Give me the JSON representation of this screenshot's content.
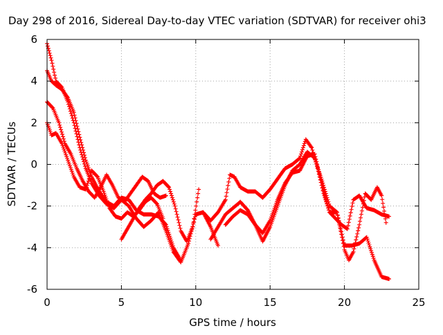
{
  "chart_data": {
    "type": "scatter",
    "title": "Day 298 of 2016, Sidereal Day-to-day VTEC variation (SDTVAR) for receiver ohi3",
    "xlabel": "GPS time / hours",
    "ylabel": "SDTVAR / TECUs",
    "xlim": [
      0,
      25
    ],
    "ylim": [
      -6,
      6
    ],
    "x_ticks": [
      "0",
      "5",
      "10",
      "15",
      "20",
      "25"
    ],
    "y_ticks": [
      "-6",
      "-4",
      "-2",
      "0",
      "2",
      "4",
      "6"
    ],
    "grid": true,
    "marker": "+",
    "color": "#ff0000",
    "series": [
      {
        "x": [
          0.0,
          0.3,
          0.6,
          1.0,
          1.4,
          1.8,
          2.2,
          2.6,
          3.0,
          3.5,
          4.0,
          4.5,
          5.0,
          5.5,
          6.0,
          6.5,
          7.0,
          7.5,
          8.0,
          8.5,
          9.0,
          9.5,
          10.0,
          10.5,
          11.0,
          11.5
        ],
        "y": [
          5.8,
          5.0,
          4.0,
          3.7,
          3.0,
          2.0,
          0.8,
          -0.2,
          -0.9,
          -1.5,
          -1.9,
          -2.1,
          -1.7,
          -2.0,
          -2.6,
          -3.0,
          -2.7,
          -2.3,
          -3.2,
          -4.2,
          -4.7,
          -3.8,
          -2.4,
          -2.3,
          -3.0,
          -3.9
        ]
      },
      {
        "x": [
          0.0,
          0.3,
          0.6,
          1.0,
          1.4,
          1.8,
          2.2,
          2.6,
          3.0,
          3.5,
          4.0,
          4.5,
          5.0,
          5.5,
          6.0,
          6.5,
          7.0,
          7.5,
          8.0,
          8.5,
          8.9
        ],
        "y": [
          4.5,
          4.0,
          3.8,
          3.6,
          3.2,
          2.5,
          1.3,
          0.2,
          -0.6,
          -1.3,
          -1.8,
          -2.0,
          -1.6,
          -1.7,
          -2.2,
          -2.4,
          -2.4,
          -2.5,
          -2.9,
          -4.0,
          -4.5
        ]
      },
      {
        "x": [
          0.0,
          0.4,
          0.8,
          1.2,
          1.6,
          2.0,
          2.4,
          2.8,
          3.2,
          3.6,
          4.0,
          4.4,
          4.8,
          5.2,
          5.6,
          6.0,
          6.4,
          6.8,
          7.2,
          7.6,
          8.0
        ],
        "y": [
          3.0,
          2.7,
          2.0,
          1.0,
          0.5,
          -0.2,
          -0.8,
          -1.3,
          -1.6,
          -1.1,
          -0.5,
          -1.0,
          -1.6,
          -1.8,
          -1.4,
          -1.0,
          -0.6,
          -0.8,
          -1.4,
          -1.6,
          -1.5
        ]
      },
      {
        "x": [
          0.0,
          0.3,
          0.6,
          1.0,
          1.4,
          1.8,
          2.2,
          2.6,
          3.0,
          3.4,
          3.8,
          4.2,
          4.6,
          5.0,
          5.4,
          5.8,
          6.2,
          6.6,
          7.0,
          7.4,
          7.8
        ],
        "y": [
          2.0,
          1.4,
          1.5,
          1.0,
          0.2,
          -0.6,
          -1.1,
          -1.2,
          -0.3,
          -0.6,
          -1.3,
          -2.1,
          -2.5,
          -2.6,
          -2.3,
          -2.5,
          -2.2,
          -1.8,
          -1.6,
          -1.9,
          -2.6
        ]
      },
      {
        "x": [
          5.0,
          5.4,
          5.8,
          6.2,
          6.6,
          7.0,
          7.4,
          7.8,
          8.2,
          8.6,
          9.0,
          9.4,
          9.8,
          10.2
        ],
        "y": [
          -3.6,
          -3.1,
          -2.6,
          -2.1,
          -1.7,
          -1.4,
          -1.0,
          -0.8,
          -1.1,
          -2.0,
          -3.2,
          -3.7,
          -3.0,
          -1.2
        ]
      },
      {
        "x": [
          10.5,
          11.0,
          11.5,
          12.0,
          12.3,
          12.6,
          13.0,
          13.5,
          14.0,
          14.5,
          15.0,
          15.5,
          16.0,
          16.5,
          17.0,
          17.4,
          17.8,
          18.2,
          18.6,
          19.0,
          19.4,
          19.8,
          20.2,
          20.6,
          21.0,
          21.5,
          22.0,
          22.5,
          23.0
        ],
        "y": [
          -2.3,
          -2.7,
          -2.3,
          -1.7,
          -0.5,
          -0.6,
          -1.1,
          -1.3,
          -1.3,
          -1.6,
          -1.2,
          -0.7,
          -0.2,
          0.0,
          0.3,
          1.2,
          0.8,
          -0.2,
          -1.4,
          -2.3,
          -2.6,
          -2.9,
          -3.1,
          -1.7,
          -1.5,
          -2.1,
          -2.2,
          -2.4,
          -2.5
        ]
      },
      {
        "x": [
          11.0,
          11.5,
          12.0,
          12.5,
          13.0,
          13.5,
          14.0,
          14.5,
          15.0,
          15.5,
          16.0,
          16.5,
          17.0,
          17.5,
          18.0,
          18.5,
          19.0,
          19.5,
          20.0,
          20.5,
          21.0,
          21.5,
          22.0,
          22.5,
          23.0
        ],
        "y": [
          -3.6,
          -3.0,
          -2.4,
          -2.1,
          -1.8,
          -2.2,
          -2.9,
          -3.3,
          -2.7,
          -1.7,
          -0.9,
          -0.4,
          -0.3,
          0.4,
          0.5,
          -1.0,
          -2.3,
          -2.3,
          -3.9,
          -3.9,
          -3.8,
          -3.5,
          -4.6,
          -5.4,
          -5.5
        ]
      },
      {
        "x": [
          12.0,
          12.5,
          13.0,
          13.5,
          14.0,
          14.5,
          15.0,
          15.5,
          16.0,
          16.5,
          17.0,
          17.5,
          18.0,
          18.5,
          19.0,
          19.5,
          20.0,
          20.3,
          20.6,
          21.0,
          21.4,
          21.8,
          22.2,
          22.5,
          22.8
        ],
        "y": [
          -2.9,
          -2.5,
          -2.2,
          -2.4,
          -2.9,
          -3.7,
          -3.0,
          -2.0,
          -1.0,
          -0.3,
          0.0,
          0.6,
          0.3,
          -0.8,
          -2.0,
          -2.3,
          -4.1,
          -4.6,
          -4.2,
          -2.9,
          -1.4,
          -1.7,
          -1.1,
          -1.5,
          -2.8
        ]
      }
    ]
  }
}
